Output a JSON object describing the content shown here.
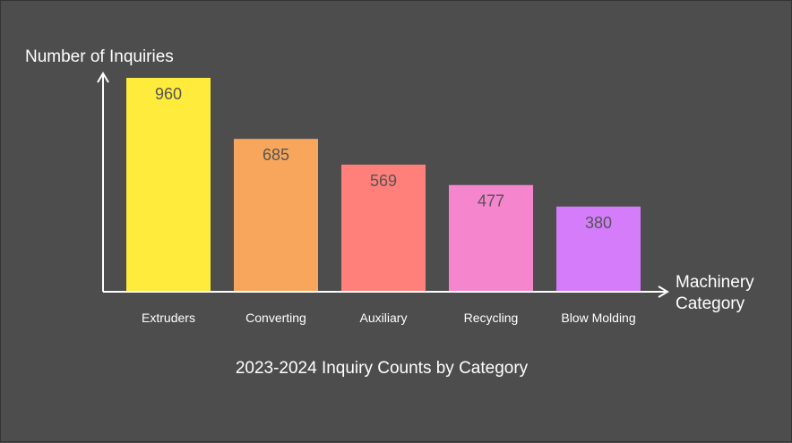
{
  "chart_data": {
    "type": "bar",
    "title": "2023-2024 Inquiry Counts by Category",
    "ylabel": "Number of Inquiries",
    "xlabel": [
      "Machinery",
      "Category"
    ],
    "categories": [
      "Extruders",
      "Converting",
      "Auxiliary",
      "Recycling",
      "Blow Molding"
    ],
    "values": [
      960,
      685,
      569,
      477,
      380
    ],
    "colors": [
      "#ffeb3b",
      "#f7a65b",
      "#ff7f7a",
      "#f585cc",
      "#d47cf9"
    ],
    "ylim": [
      0,
      960
    ],
    "grid": false,
    "legend": "none",
    "background": "#4d4d4d",
    "axis_color": "#ffffff",
    "value_label_color": "#555555"
  }
}
